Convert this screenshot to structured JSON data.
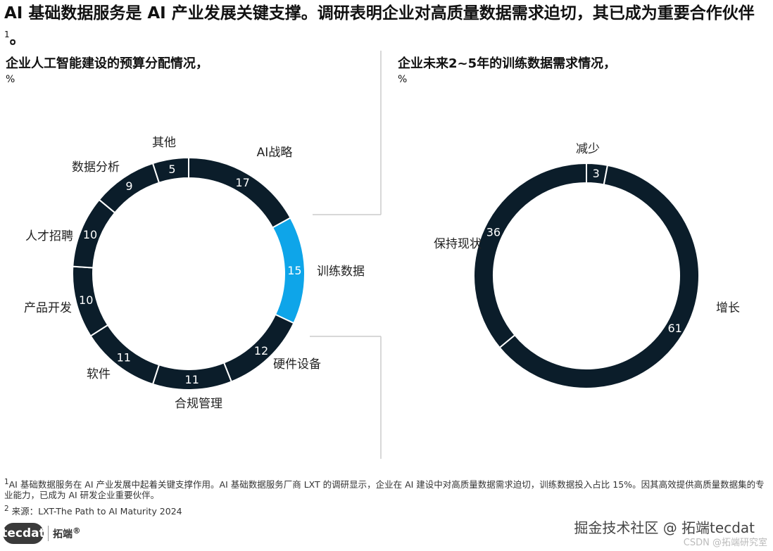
{
  "header": {
    "title": "AI 基础数据服务是 AI 产业发展关键支撑。调研表明企业对高质量数据需求迫切，其已成为重要合作伙伴",
    "title_sup": "1"
  },
  "colors": {
    "dark": "#0b1d2a",
    "highlight": "#0ea5e9",
    "divider": "#cccccc"
  },
  "chart_data": [
    {
      "type": "pie",
      "title": "企业人工智能建设的预算分配情况，",
      "unit": "%",
      "categories": [
        "AI战略",
        "训练数据",
        "硬件设备",
        "合规管理",
        "软件",
        "产品开发",
        "人才招聘",
        "数据分析",
        "其他"
      ],
      "values": [
        17,
        15,
        12,
        11,
        11,
        10,
        10,
        9,
        5
      ],
      "highlight": "训练数据"
    },
    {
      "type": "pie",
      "title": "企业未来2~5年的训练数据需求情况，",
      "unit": "%",
      "categories": [
        "减少",
        "增长",
        "保持现状"
      ],
      "values": [
        3,
        61,
        36
      ]
    }
  ],
  "footnotes": {
    "note1_sup": "1",
    "note1": "AI 基础数据服务在 AI 产业发展中起着关键支撑作用。AI 基础数据服务厂商 LXT 的调研显示，企业在 AI 建设中对高质量数据需求迫切，训练数据投入占比 15%。因其高效提供高质量数据集的专业能力，已成为 AI 研发企业重要伙伴。",
    "note2_sup": "2",
    "note2": "来源：LXT-The Path to AI Maturity 2024"
  },
  "logo": {
    "mark": "tecdat",
    "name": "拓端",
    "reg": "®"
  },
  "watermarks": {
    "main": "掘金技术社区 @ 拓端tecdat",
    "sub": "CSDN @拓端研究室"
  }
}
